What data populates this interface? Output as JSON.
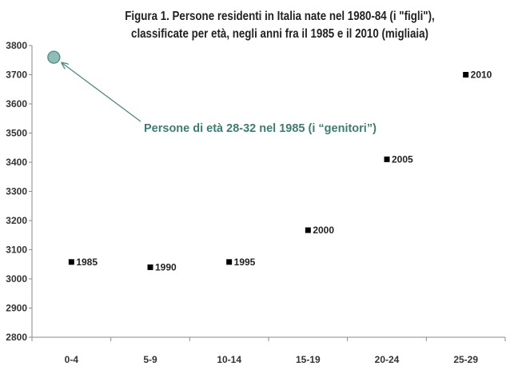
{
  "chart_data": {
    "type": "scatter",
    "title_line1": "Figura 1. Persone residenti in Italia nate nel 1980-84 (i \"figli\"),",
    "title_line2": "classificate per età, negli anni fra il 1985 e il 2010 (migliaia)",
    "xlabel": "",
    "ylabel": "",
    "categories": [
      "0-4",
      "5-9",
      "10-14",
      "15-19",
      "20-24",
      "25-29"
    ],
    "ylim": [
      2800,
      3800
    ],
    "yticks": [
      2800,
      2900,
      3000,
      3100,
      3200,
      3300,
      3400,
      3500,
      3600,
      3700,
      3800
    ],
    "grid": false,
    "points": [
      {
        "category": "0-4",
        "value": 3058,
        "label": "1985"
      },
      {
        "category": "5-9",
        "value": 3040,
        "label": "1990"
      },
      {
        "category": "10-14",
        "value": 3058,
        "label": "1995"
      },
      {
        "category": "15-19",
        "value": 3167,
        "label": "2000"
      },
      {
        "category": "20-24",
        "value": 3410,
        "label": "2005"
      },
      {
        "category": "25-29",
        "value": 3700,
        "label": "2010"
      }
    ],
    "highlight": {
      "category": "0-4",
      "value": 3760,
      "annotation": "Persone di età 28-32 nel 1985 (i “genitori”)",
      "color": "#8fbcb6",
      "stroke_color": "#4e8a82"
    },
    "marker_color": "#000000",
    "axis_color": "#8a8a8a"
  }
}
